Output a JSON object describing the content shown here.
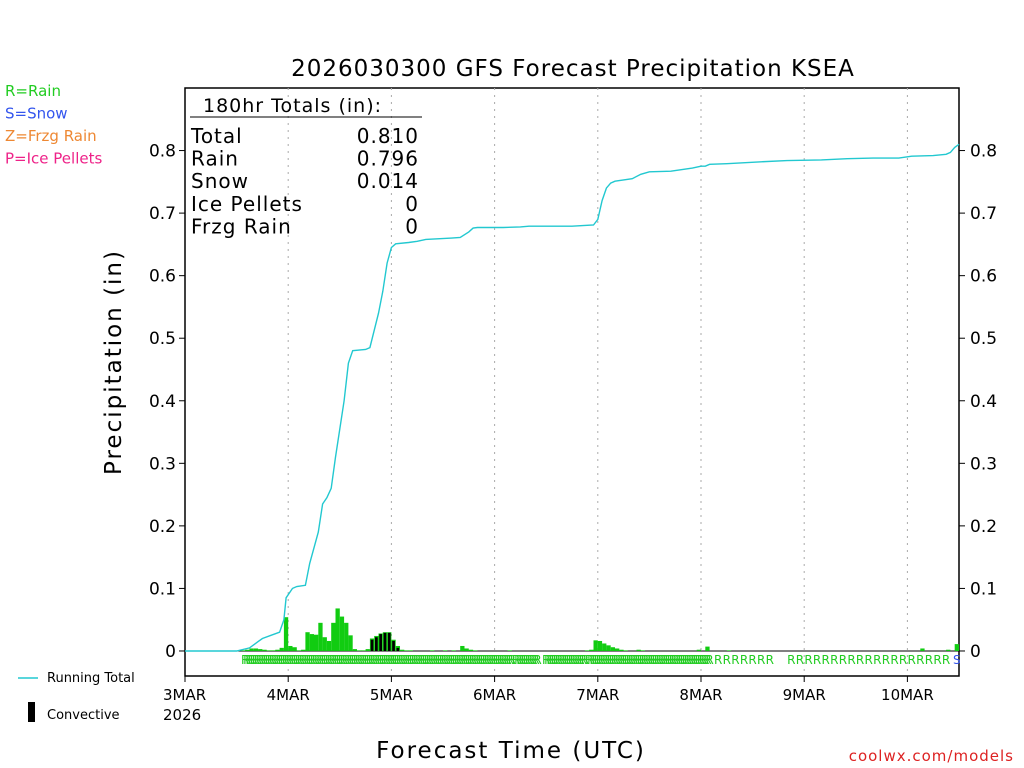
{
  "chart_data": {
    "type": "bar+line",
    "title": "2026030300 GFS Forecast Precipitation KSEA",
    "xlabel": "Forecast Time (UTC)",
    "ylabel": "Precipitation (in)",
    "ylim": [
      -0.04,
      0.9
    ],
    "xlim_hours": [
      0,
      180
    ],
    "yticks": [
      0,
      0.1,
      0.2,
      0.3,
      0.4,
      0.5,
      0.6,
      0.7,
      0.8
    ],
    "ytick_labels": [
      "0",
      "0.1",
      "0.2",
      "0.3",
      "0.4",
      "0.5",
      "0.6",
      "0.7",
      "0.8"
    ],
    "xticks": [
      {
        "hour": 0,
        "label": "3MAR",
        "sublabel": "2026"
      },
      {
        "hour": 24,
        "label": "4MAR"
      },
      {
        "hour": 48,
        "label": "5MAR"
      },
      {
        "hour": 72,
        "label": "6MAR"
      },
      {
        "hour": 96,
        "label": "7MAR"
      },
      {
        "hour": 120,
        "label": "8MAR"
      },
      {
        "hour": 144,
        "label": "9MAR"
      },
      {
        "hour": 168,
        "label": "10MAR"
      }
    ],
    "legend_left": [
      {
        "label": "R=Rain",
        "color": "#22cc22"
      },
      {
        "label": "S=Snow",
        "color": "#3355ee"
      },
      {
        "label": "Z=Frzg Rain",
        "color": "#ee8833"
      },
      {
        "label": "P=Ice Pellets",
        "color": "#ee2288"
      }
    ],
    "legend_bottom": [
      {
        "label": "Running Total",
        "color": "#22c8d0",
        "kind": "line"
      },
      {
        "label": "Convective",
        "color": "#000000",
        "kind": "bar"
      }
    ],
    "totals": {
      "header": "180hr Totals (in):",
      "rows": [
        {
          "label": "Total",
          "value": "0.810"
        },
        {
          "label": "Rain",
          "value": "0.796"
        },
        {
          "label": "Snow",
          "value": "0.014"
        },
        {
          "label": "Ice Pellets",
          "value": "0"
        },
        {
          "label": "Frzg Rain",
          "value": "0"
        }
      ]
    },
    "running_total": [
      [
        0,
        0
      ],
      [
        12,
        0
      ],
      [
        15,
        0.005
      ],
      [
        17,
        0.015
      ],
      [
        18,
        0.02
      ],
      [
        20,
        0.025
      ],
      [
        22,
        0.03
      ],
      [
        23,
        0.05
      ],
      [
        23.5,
        0.085
      ],
      [
        25,
        0.1
      ],
      [
        26,
        0.103
      ],
      [
        28,
        0.105
      ],
      [
        29,
        0.14
      ],
      [
        31,
        0.19
      ],
      [
        32,
        0.235
      ],
      [
        33,
        0.245
      ],
      [
        34,
        0.26
      ],
      [
        35,
        0.31
      ],
      [
        37,
        0.4
      ],
      [
        38,
        0.46
      ],
      [
        39,
        0.48
      ],
      [
        42,
        0.482
      ],
      [
        43,
        0.485
      ],
      [
        45,
        0.54
      ],
      [
        46,
        0.575
      ],
      [
        47,
        0.62
      ],
      [
        48,
        0.645
      ],
      [
        49,
        0.651
      ],
      [
        52,
        0.653
      ],
      [
        54,
        0.655
      ],
      [
        56,
        0.658
      ],
      [
        62,
        0.66
      ],
      [
        64,
        0.661
      ],
      [
        66,
        0.67
      ],
      [
        67,
        0.676
      ],
      [
        68,
        0.677
      ],
      [
        74,
        0.677
      ],
      [
        78,
        0.678
      ],
      [
        80,
        0.679
      ],
      [
        90,
        0.679
      ],
      [
        95,
        0.681
      ],
      [
        96,
        0.69
      ],
      [
        97,
        0.72
      ],
      [
        98,
        0.74
      ],
      [
        99,
        0.748
      ],
      [
        100,
        0.751
      ],
      [
        104,
        0.755
      ],
      [
        106,
        0.762
      ],
      [
        108,
        0.766
      ],
      [
        113,
        0.767
      ],
      [
        116,
        0.77
      ],
      [
        118,
        0.772
      ],
      [
        120,
        0.775
      ],
      [
        121,
        0.775
      ],
      [
        122,
        0.778
      ],
      [
        126,
        0.779
      ],
      [
        134,
        0.782
      ],
      [
        140,
        0.784
      ],
      [
        148,
        0.785
      ],
      [
        154,
        0.787
      ],
      [
        160,
        0.788
      ],
      [
        166,
        0.788
      ],
      [
        169,
        0.791
      ],
      [
        174,
        0.792
      ],
      [
        177,
        0.794
      ],
      [
        178,
        0.797
      ],
      [
        179,
        0.805
      ],
      [
        180,
        0.81
      ]
    ],
    "bars": [
      [
        14,
        0.001,
        0
      ],
      [
        15,
        0.002,
        0
      ],
      [
        16,
        0.004,
        0
      ],
      [
        17,
        0.004,
        0
      ],
      [
        18,
        0.003,
        0
      ],
      [
        19,
        0.002,
        0
      ],
      [
        20,
        0.001,
        0
      ],
      [
        21,
        0.001,
        0
      ],
      [
        22,
        0.002,
        0
      ],
      [
        23,
        0.005,
        0
      ],
      [
        24,
        0.054,
        0
      ],
      [
        25,
        0.008,
        0
      ],
      [
        26,
        0.006,
        0
      ],
      [
        27,
        0.001,
        0
      ],
      [
        28,
        0.002,
        0
      ],
      [
        29,
        0.03,
        0
      ],
      [
        30,
        0.027,
        0
      ],
      [
        31,
        0.026,
        0
      ],
      [
        32,
        0.045,
        0
      ],
      [
        33,
        0.022,
        0
      ],
      [
        34,
        0.016,
        0
      ],
      [
        35,
        0.045,
        0
      ],
      [
        36,
        0.068,
        0
      ],
      [
        37,
        0.055,
        0
      ],
      [
        38,
        0.045,
        0
      ],
      [
        39,
        0.025,
        0
      ],
      [
        40,
        0.003,
        0
      ],
      [
        41,
        0.001,
        0
      ],
      [
        42,
        0.001,
        0
      ],
      [
        43,
        0.003,
        0
      ],
      [
        44,
        0.02,
        0.018
      ],
      [
        45,
        0.024,
        0.022
      ],
      [
        46,
        0.028,
        0.027
      ],
      [
        47,
        0.03,
        0.029
      ],
      [
        48,
        0.03,
        0.029
      ],
      [
        49,
        0.018,
        0.016
      ],
      [
        50,
        0.008,
        0.005
      ],
      [
        51,
        0.002,
        0
      ],
      [
        52,
        0.001,
        0
      ],
      [
        53,
        0.001,
        0
      ],
      [
        58,
        0.001,
        0
      ],
      [
        61,
        0.001,
        0
      ],
      [
        63,
        0.001,
        0
      ],
      [
        65,
        0.008,
        0
      ],
      [
        66,
        0.004,
        0
      ],
      [
        67,
        0.002,
        0
      ],
      [
        68,
        0.001,
        0
      ],
      [
        76,
        0.001,
        0
      ],
      [
        94,
        0.001,
        0
      ],
      [
        95,
        0.002,
        0
      ],
      [
        96,
        0.017,
        0
      ],
      [
        97,
        0.016,
        0
      ],
      [
        98,
        0.012,
        0
      ],
      [
        99,
        0.009,
        0
      ],
      [
        100,
        0.006,
        0
      ],
      [
        101,
        0.004,
        0
      ],
      [
        102,
        0.002,
        0
      ],
      [
        103,
        0.001,
        0
      ],
      [
        106,
        0.002,
        0
      ],
      [
        107,
        0.001,
        0
      ],
      [
        120,
        0.002,
        0
      ],
      [
        122,
        0.007,
        0
      ],
      [
        127,
        0.001,
        0
      ],
      [
        172,
        0.004,
        0
      ],
      [
        178,
        0.002,
        0
      ],
      [
        180,
        0.011,
        0
      ]
    ],
    "ptype_marks": {
      "rain_dense_hours": [
        [
          14,
          48
        ],
        [
          48,
          76
        ],
        [
          77,
          82
        ],
        [
          84,
          93
        ],
        [
          94,
          122
        ]
      ],
      "rain_sparse_hours": [
        124,
        126,
        128,
        130,
        132,
        134,
        136,
        141,
        143,
        145,
        147,
        149,
        151,
        153,
        155,
        157,
        159,
        161,
        163,
        165,
        167,
        169,
        171,
        173,
        175,
        177
      ],
      "snow_hours": [
        179.5
      ],
      "rain_letter": "R",
      "snow_letter": "S"
    }
  },
  "footer": {
    "credit": "coolwx.com/models"
  }
}
